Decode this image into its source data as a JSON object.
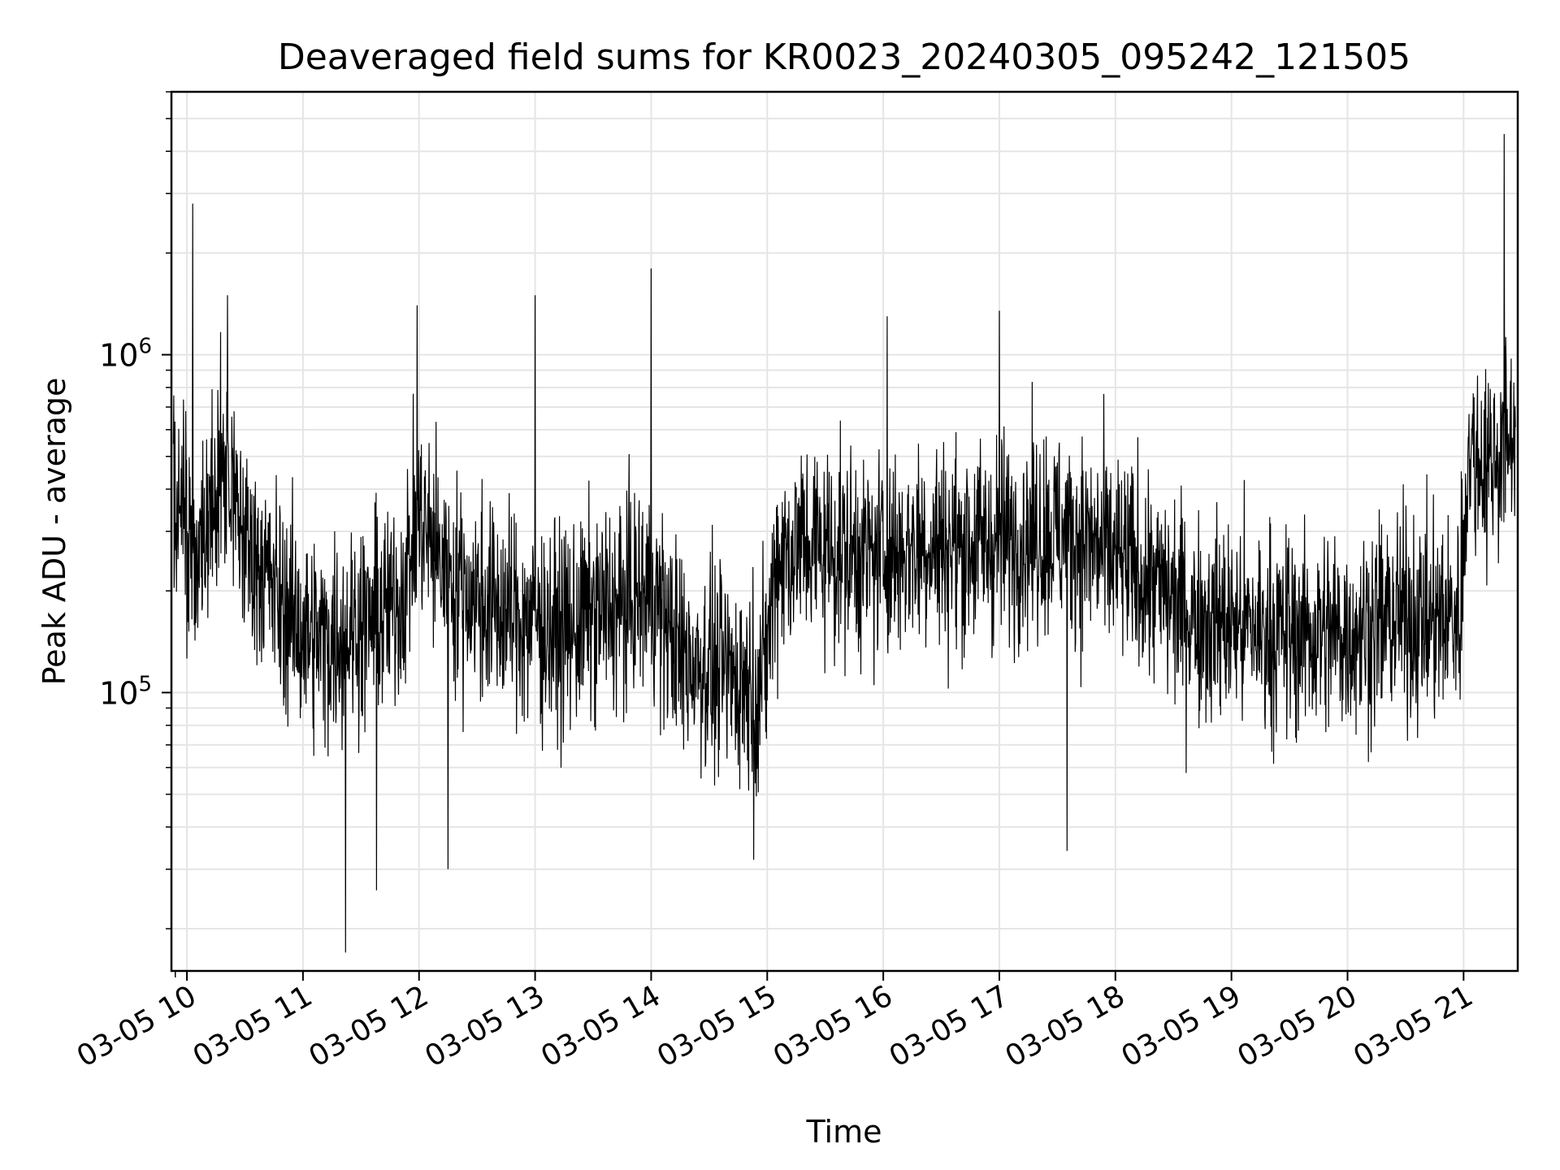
{
  "chart_data": {
    "type": "line",
    "title": "Deaveraged field sums for KR0023_20240305_095242_121505",
    "xlabel": "Time",
    "ylabel": "Peak ADU - average",
    "yscale": "log",
    "ylim": [
      15000,
      6000000
    ],
    "xlim": [
      "2024-03-05 09:52",
      "2024-03-05 21:28"
    ],
    "grid": true,
    "x_ticks": [
      "03-05 10",
      "03-05 11",
      "03-05 12",
      "03-05 13",
      "03-05 14",
      "03-05 15",
      "03-05 16",
      "03-05 17",
      "03-05 18",
      "03-05 19",
      "03-05 20",
      "03-05 21"
    ],
    "y_ticks": [
      100000,
      1000000
    ],
    "series": [
      {
        "color": "#000000",
        "x": [
          "2024-03-05 09:53",
          "2024-03-05 10:00",
          "2024-03-05 10:05",
          "2024-03-05 10:10",
          "2024-03-05 10:15",
          "2024-03-05 10:20",
          "2024-03-05 10:30",
          "2024-03-05 10:40",
          "2024-03-05 10:50",
          "2024-03-05 11:00",
          "2024-03-05 11:10",
          "2024-03-05 11:20",
          "2024-03-05 11:30",
          "2024-03-05 11:40",
          "2024-03-05 11:50",
          "2024-03-05 12:00",
          "2024-03-05 12:15",
          "2024-03-05 12:30",
          "2024-03-05 12:45",
          "2024-03-05 13:00",
          "2024-03-05 13:15",
          "2024-03-05 13:30",
          "2024-03-05 13:45",
          "2024-03-05 14:00",
          "2024-03-05 14:15",
          "2024-03-05 14:30",
          "2024-03-05 14:45",
          "2024-03-05 14:58",
          "2024-03-05 15:05",
          "2024-03-05 15:20",
          "2024-03-05 15:40",
          "2024-03-05 16:00",
          "2024-03-05 16:20",
          "2024-03-05 16:40",
          "2024-03-05 17:00",
          "2024-03-05 17:20",
          "2024-03-05 17:40",
          "2024-03-05 18:00",
          "2024-03-05 18:20",
          "2024-03-05 18:40",
          "2024-03-05 19:00",
          "2024-03-05 19:20",
          "2024-03-05 19:40",
          "2024-03-05 20:00",
          "2024-03-05 20:15",
          "2024-03-05 20:30",
          "2024-03-05 20:45",
          "2024-03-05 20:58",
          "2024-03-05 21:02",
          "2024-03-05 21:10",
          "2024-03-05 21:20",
          "2024-03-05 21:27"
        ],
        "values": [
          400000,
          300000,
          250000,
          260000,
          380000,
          450000,
          280000,
          230000,
          180000,
          150000,
          140000,
          150000,
          160000,
          170000,
          190000,
          330000,
          220000,
          190000,
          170000,
          160000,
          150000,
          170000,
          180000,
          200000,
          130000,
          120000,
          110000,
          110000,
          250000,
          280000,
          260000,
          250000,
          280000,
          270000,
          280000,
          300000,
          290000,
          250000,
          210000,
          170000,
          160000,
          150000,
          150000,
          150000,
          160000,
          170000,
          160000,
          170000,
          500000,
          480000,
          520000,
          600000
        ],
        "peaks": [
          {
            "x": "2024-03-05 10:03",
            "value": 2800000
          },
          {
            "x": "2024-03-05 10:21",
            "value": 1500000
          },
          {
            "x": "2024-03-05 11:59",
            "value": 1400000
          },
          {
            "x": "2024-03-05 13:00",
            "value": 1500000
          },
          {
            "x": "2024-03-05 14:00",
            "value": 1800000
          },
          {
            "x": "2024-03-05 16:02",
            "value": 1300000
          },
          {
            "x": "2024-03-05 17:00",
            "value": 1350000
          },
          {
            "x": "2024-03-05 21:21",
            "value": 4500000
          }
        ],
        "troughs": [
          {
            "x": "2024-03-05 11:22",
            "value": 17000
          },
          {
            "x": "2024-03-05 11:38",
            "value": 26000
          },
          {
            "x": "2024-03-05 12:15",
            "value": 30000
          },
          {
            "x": "2024-03-05 17:35",
            "value": 34000
          },
          {
            "x": "2024-03-05 14:53",
            "value": 32000
          }
        ]
      }
    ]
  }
}
